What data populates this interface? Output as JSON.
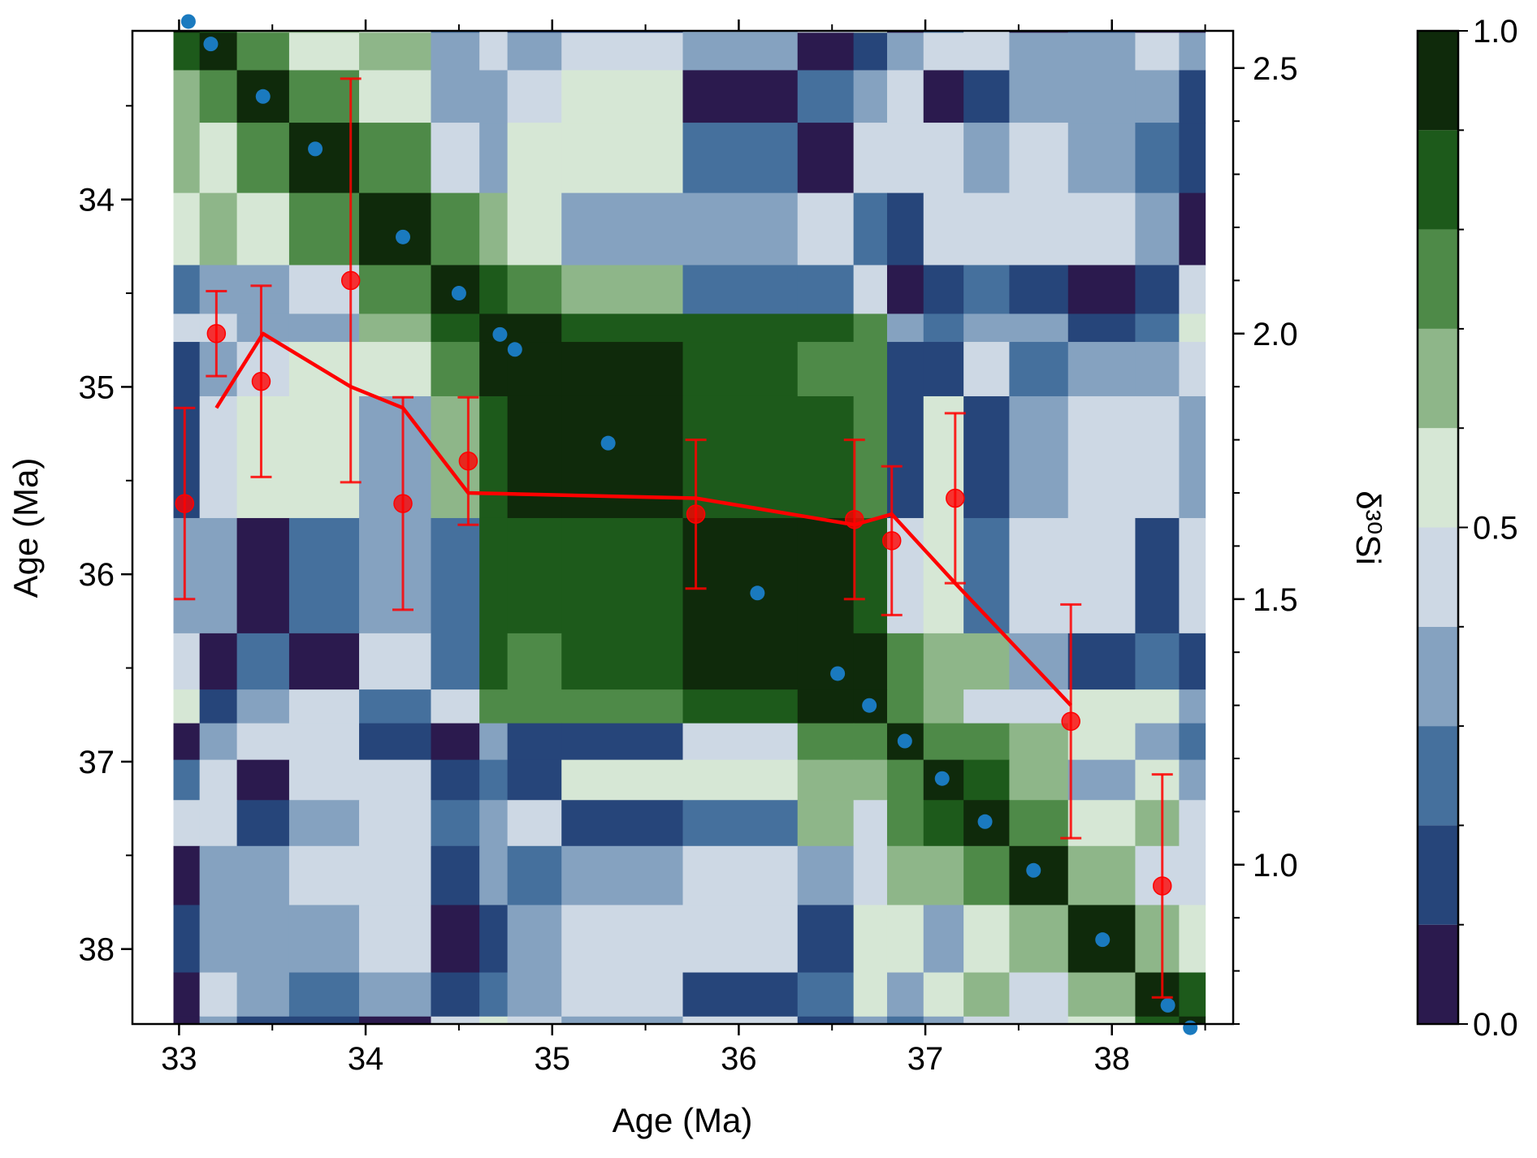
{
  "chart_data": {
    "type": "heatmap",
    "title": "",
    "xlabel": "Age (Ma)",
    "ylabel": "Age (Ma)",
    "y2label": "δ³⁰Si",
    "xlim": [
      32.75,
      38.65
    ],
    "ylim": [
      38.4,
      33.1
    ],
    "y2lim": [
      0.7,
      2.57
    ],
    "x_ticks": [
      "33",
      "34",
      "35",
      "36",
      "37",
      "38"
    ],
    "y_ticks": [
      "34",
      "35",
      "36",
      "37",
      "38"
    ],
    "y2_ticks": [
      "1.0",
      "1.5",
      "2.0",
      "2.5"
    ],
    "colorbar": {
      "range": [
        0.0,
        1.0
      ],
      "levels": [
        0.0,
        0.1,
        0.2,
        0.3,
        0.4,
        0.5,
        0.6,
        0.7,
        0.8,
        0.9,
        1.0
      ],
      "tick_labels": [
        "0.0",
        "0.5",
        "1.0"
      ],
      "colors": [
        "#2b1a4e",
        "#26457a",
        "#45709d",
        "#85a2c0",
        "#cdd8e4",
        "#d6e7d5",
        "#8eb689",
        "#4e8a48",
        "#1d5a1b",
        "#0f2a0b"
      ]
    },
    "heatmap_ages": [
      33.05,
      33.17,
      33.45,
      33.73,
      34.2,
      34.5,
      34.72,
      34.8,
      35.3,
      36.1,
      36.53,
      36.7,
      36.89,
      37.09,
      37.32,
      37.58,
      37.95,
      38.3,
      38.42
    ],
    "diagonal_points": {
      "color": "#1a7abf",
      "x": [
        33.05,
        33.17,
        33.45,
        33.73,
        34.2,
        34.5,
        34.72,
        34.8,
        35.3,
        36.1,
        36.53,
        36.7,
        36.89,
        37.09,
        37.32,
        37.58,
        37.95,
        38.3,
        38.42
      ],
      "y": [
        33.05,
        33.17,
        33.45,
        33.73,
        34.2,
        34.5,
        34.72,
        34.8,
        35.3,
        36.1,
        36.53,
        36.7,
        36.89,
        37.09,
        37.32,
        37.58,
        37.95,
        38.3,
        38.42
      ]
    },
    "series": [
      {
        "color": "#ff0000",
        "x": [
          33.03,
          33.2,
          33.44,
          33.92,
          34.2,
          34.55,
          35.77,
          36.62,
          36.82,
          37.16,
          37.78,
          38.27
        ],
        "y": [
          1.68,
          2.0,
          1.91,
          2.1,
          1.68,
          1.76,
          1.66,
          1.65,
          1.61,
          1.69,
          1.27,
          0.96
        ],
        "err": [
          0.18,
          0.08,
          0.18,
          0.38,
          0.2,
          0.12,
          0.14,
          0.15,
          0.14,
          0.16,
          0.22,
          0.21
        ]
      }
    ],
    "trend_line": {
      "color": "#ff0000",
      "x": [
        33.2,
        33.45,
        33.92,
        34.2,
        34.55,
        35.77,
        36.62,
        36.82,
        37.16,
        37.78
      ],
      "y": [
        1.86,
        2.0,
        1.9,
        1.86,
        1.7,
        1.69,
        1.64,
        1.66,
        1.53,
        1.3
      ]
    }
  }
}
